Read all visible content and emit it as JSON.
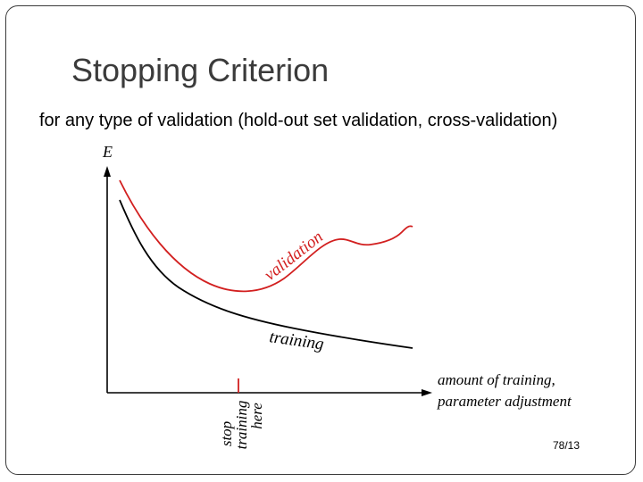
{
  "slide": {
    "title": "Stopping Criterion",
    "subtitle": "for any type of validation (hold-out set validation, cross-validation)",
    "page_number": "78/13"
  },
  "diagram": {
    "y_axis_label": "E",
    "x_axis_label_line1": "amount of training,",
    "x_axis_label_line2": "parameter adjustment",
    "validation_label": "validation",
    "training_label": "training",
    "stop_label_line1": "stop",
    "stop_label_line2": "training",
    "stop_label_line3": "here",
    "colors": {
      "validation": "#d21f1f",
      "training": "#000000",
      "stop_marker": "#d21f1f"
    }
  }
}
